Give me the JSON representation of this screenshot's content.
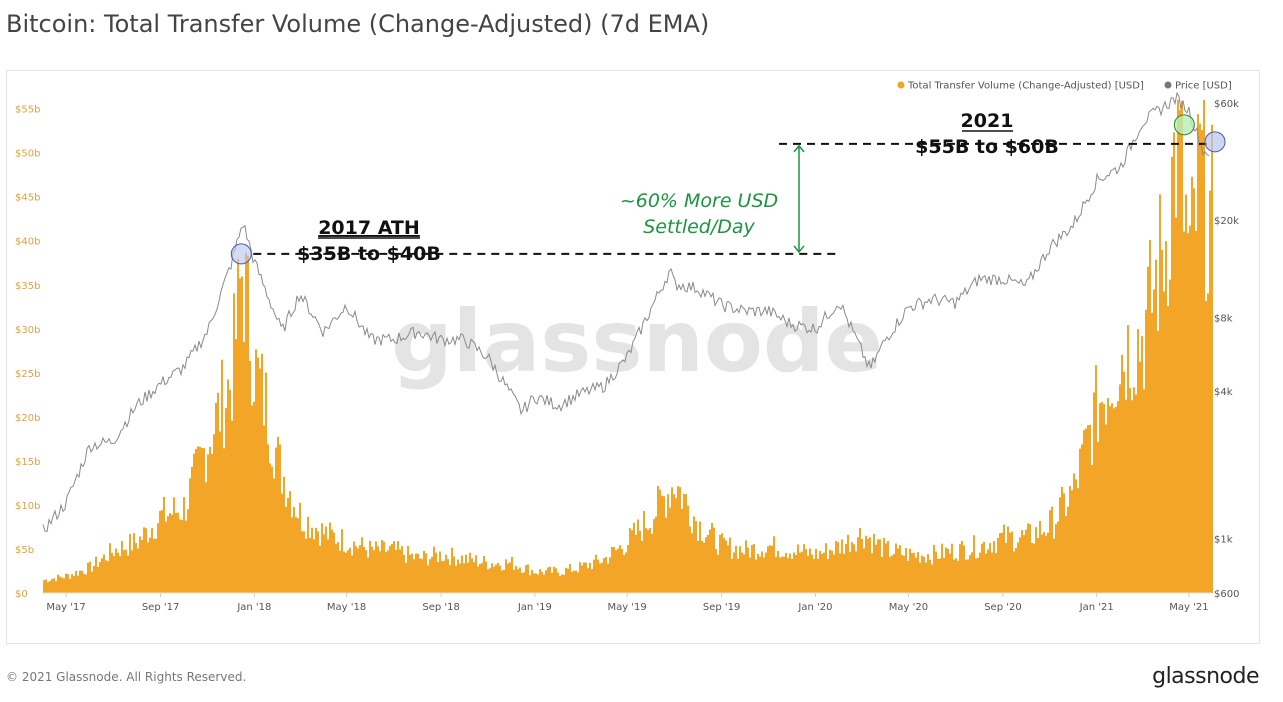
{
  "title": "Bitcoin: Total Transfer Volume (Change-Adjusted) (7d EMA)",
  "footer": {
    "copyright": "© 2021 Glassnode. All Rights Reserved.",
    "logo": "glassnode"
  },
  "watermark": "glassnode",
  "colors": {
    "volume": "#f7931a",
    "volume_fill": "#f2a527",
    "price": "#8a8a8a",
    "annotation_green": "#1a9641",
    "dashed": "#111111"
  },
  "chart_data": {
    "type": "bar",
    "title": "Bitcoin: Total Transfer Volume (Change-Adjusted) (7d EMA)",
    "x_tick_labels": [
      "May '17",
      "Sep '17",
      "Jan '18",
      "May '18",
      "Sep '18",
      "Jan '19",
      "May '19",
      "Sep '19",
      "Jan '20",
      "May '20",
      "Sep '20",
      "Jan '21",
      "May '21"
    ],
    "x_range": [
      "2017-04-01",
      "2021-05-31"
    ],
    "legend": {
      "placement": "top-right",
      "entries": [
        "Total Transfer Volume (Change-Adjusted) [USD]",
        "Price [USD]"
      ]
    },
    "left_axis": {
      "ticks": [
        "$0",
        "$5b",
        "$10b",
        "$15b",
        "$20b",
        "$25b",
        "$30b",
        "$35b",
        "$40b",
        "$45b",
        "$50b",
        "$55b"
      ],
      "ylim": [
        0,
        57
      ]
    },
    "right_axis": {
      "scale": "log",
      "ticks": [
        "$600",
        "$1k",
        "$4k",
        "$8k",
        "$20k",
        "$60k"
      ],
      "ylim": [
        600,
        60000
      ]
    },
    "series": [
      {
        "name": "Total Transfer Volume (Change-Adjusted) [USD]",
        "axis": "left",
        "unit": "billions USD",
        "x": [
          "2017-04-01",
          "2017-05-01",
          "2017-06-01",
          "2017-07-01",
          "2017-08-01",
          "2017-09-01",
          "2017-10-01",
          "2017-11-01",
          "2017-12-01",
          "2017-12-15",
          "2018-01-01",
          "2018-01-15",
          "2018-02-01",
          "2018-03-01",
          "2018-04-01",
          "2018-05-01",
          "2018-06-01",
          "2018-07-01",
          "2018-08-01",
          "2018-09-01",
          "2018-10-01",
          "2018-11-01",
          "2018-12-01",
          "2019-01-01",
          "2019-02-01",
          "2019-03-01",
          "2019-04-01",
          "2019-05-01",
          "2019-06-01",
          "2019-07-01",
          "2019-08-01",
          "2019-09-01",
          "2019-10-01",
          "2019-11-01",
          "2019-12-01",
          "2020-01-01",
          "2020-02-01",
          "2020-03-01",
          "2020-04-01",
          "2020-05-01",
          "2020-06-01",
          "2020-07-01",
          "2020-08-01",
          "2020-09-01",
          "2020-10-01",
          "2020-11-01",
          "2020-12-01",
          "2021-01-01",
          "2021-02-01",
          "2021-03-01",
          "2021-04-01",
          "2021-04-15",
          "2021-05-01",
          "2021-05-15",
          "2021-05-25"
        ],
        "values": [
          1.5,
          2,
          3,
          5,
          6,
          9,
          10,
          18,
          25,
          38,
          26,
          22,
          15,
          9,
          7,
          6,
          5,
          5,
          4,
          4.5,
          4,
          3.5,
          3.5,
          2.5,
          2.5,
          3,
          4,
          6,
          9,
          13,
          8,
          5.5,
          5,
          5.5,
          5,
          4.5,
          5.5,
          7,
          5,
          4.5,
          4.5,
          5,
          5.5,
          6.5,
          6.5,
          8,
          12,
          22,
          28,
          30,
          42,
          54,
          38,
          50,
          44
        ]
      },
      {
        "name": "Price [USD]",
        "axis": "right",
        "unit": "USD",
        "x": [
          "2017-04-01",
          "2017-05-01",
          "2017-06-01",
          "2017-07-01",
          "2017-08-01",
          "2017-09-01",
          "2017-10-01",
          "2017-11-01",
          "2017-12-01",
          "2017-12-17",
          "2018-01-01",
          "2018-02-06",
          "2018-03-01",
          "2018-04-01",
          "2018-05-01",
          "2018-06-01",
          "2018-07-01",
          "2018-08-01",
          "2018-09-01",
          "2018-10-01",
          "2018-11-01",
          "2018-12-15",
          "2019-01-01",
          "2019-02-01",
          "2019-03-01",
          "2019-04-01",
          "2019-05-01",
          "2019-06-26",
          "2019-07-01",
          "2019-08-01",
          "2019-09-01",
          "2019-10-01",
          "2019-11-01",
          "2019-12-01",
          "2020-01-01",
          "2020-02-01",
          "2020-03-12",
          "2020-04-01",
          "2020-05-01",
          "2020-06-01",
          "2020-07-01",
          "2020-08-01",
          "2020-09-01",
          "2020-10-01",
          "2020-11-01",
          "2020-12-01",
          "2021-01-01",
          "2021-02-01",
          "2021-03-01",
          "2021-04-14",
          "2021-05-01",
          "2021-05-20"
        ],
        "values": [
          1080,
          1400,
          2400,
          2500,
          3500,
          4300,
          5000,
          7000,
          13000,
          19500,
          13500,
          7000,
          10000,
          7000,
          9000,
          6500,
          6500,
          7000,
          6500,
          6500,
          5500,
          3300,
          3800,
          3500,
          3900,
          4200,
          5500,
          12500,
          11000,
          10500,
          9000,
          8500,
          8500,
          7500,
          7200,
          9300,
          4900,
          6500,
          8800,
          9500,
          9200,
          11500,
          11500,
          10700,
          15500,
          19000,
          29000,
          33000,
          50000,
          63000,
          56000,
          38000
        ]
      }
    ],
    "annotations": [
      {
        "text_line1": "2017 ATH",
        "text_line2": "$35B to $40B",
        "level_billions": 38.5
      },
      {
        "text_line1": "2021",
        "text_line2": "$55B to $60B",
        "level_billions": 51
      },
      {
        "text_line1": "~60% More USD",
        "text_line2": "Settled/Day"
      }
    ]
  }
}
